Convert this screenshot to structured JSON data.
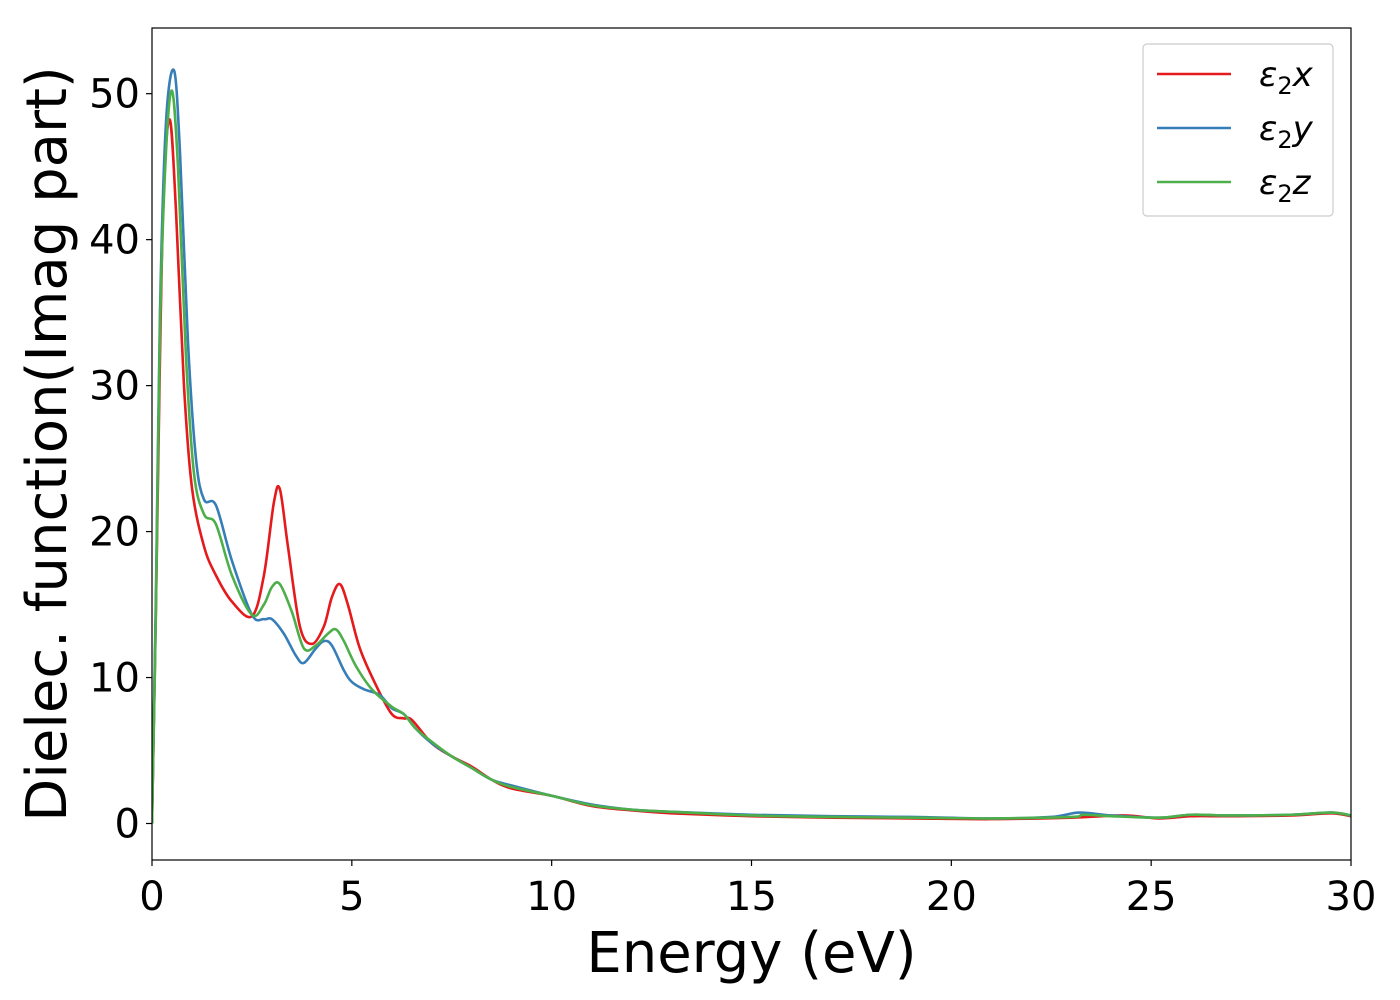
{
  "chart_data": {
    "type": "line",
    "title": "",
    "xlabel": "Energy (eV)",
    "ylabel": "Dielec. function(Imag part)",
    "xlim": [
      0,
      30
    ],
    "ylim": [
      -2.5,
      54.5
    ],
    "xticks": [
      0,
      5,
      10,
      15,
      20,
      25,
      30
    ],
    "yticks": [
      0,
      10,
      20,
      30,
      40,
      50
    ],
    "xtick_labels": [
      "0",
      "5",
      "10",
      "15",
      "20",
      "25",
      "30"
    ],
    "ytick_labels": [
      "0",
      "10",
      "20",
      "30",
      "40",
      "50"
    ],
    "grid": false,
    "legend": "top-right",
    "series": [
      {
        "name": "ε2x",
        "name_base": "ε",
        "name_sub": "2",
        "name_suffix": "x",
        "color": "#e41a1c",
        "points": [
          [
            0,
            0
          ],
          [
            0.1,
            15
          ],
          [
            0.2,
            32
          ],
          [
            0.3,
            44
          ],
          [
            0.45,
            48.2
          ],
          [
            0.6,
            42
          ],
          [
            0.8,
            30
          ],
          [
            1.0,
            23
          ],
          [
            1.3,
            19
          ],
          [
            1.6,
            17
          ],
          [
            2.0,
            15.2
          ],
          [
            2.5,
            14.2
          ],
          [
            2.8,
            17
          ],
          [
            3.05,
            22
          ],
          [
            3.2,
            22.9
          ],
          [
            3.4,
            19
          ],
          [
            3.7,
            13.5
          ],
          [
            4.0,
            12.3
          ],
          [
            4.3,
            13.5
          ],
          [
            4.5,
            15.5
          ],
          [
            4.7,
            16.4
          ],
          [
            4.9,
            15
          ],
          [
            5.2,
            12
          ],
          [
            5.6,
            9.5
          ],
          [
            6.0,
            7.5
          ],
          [
            6.3,
            7.2
          ],
          [
            6.5,
            7.1
          ],
          [
            7.0,
            5.5
          ],
          [
            7.5,
            4.6
          ],
          [
            8.0,
            3.9
          ],
          [
            8.5,
            3.0
          ],
          [
            9.0,
            2.4
          ],
          [
            10.0,
            1.9
          ],
          [
            11.0,
            1.2
          ],
          [
            12.0,
            0.9
          ],
          [
            13.0,
            0.7
          ],
          [
            15.0,
            0.5
          ],
          [
            17.0,
            0.4
          ],
          [
            19.0,
            0.35
          ],
          [
            21.0,
            0.3
          ],
          [
            23.0,
            0.4
          ],
          [
            24.3,
            0.55
          ],
          [
            25.2,
            0.35
          ],
          [
            26.0,
            0.5
          ],
          [
            27.0,
            0.5
          ],
          [
            28.5,
            0.55
          ],
          [
            29.5,
            0.7
          ],
          [
            30.0,
            0.5
          ]
        ]
      },
      {
        "name": "ε2y",
        "name_base": "ε",
        "name_sub": "2",
        "name_suffix": "y",
        "color": "#377eb8",
        "points": [
          [
            0,
            0
          ],
          [
            0.1,
            16
          ],
          [
            0.2,
            35
          ],
          [
            0.35,
            48
          ],
          [
            0.55,
            51.6
          ],
          [
            0.7,
            46
          ],
          [
            0.9,
            33
          ],
          [
            1.1,
            25
          ],
          [
            1.3,
            22.2
          ],
          [
            1.6,
            21.8
          ],
          [
            2.0,
            18
          ],
          [
            2.5,
            14.3
          ],
          [
            2.8,
            14
          ],
          [
            3.0,
            14
          ],
          [
            3.3,
            13
          ],
          [
            3.6,
            11.5
          ],
          [
            3.8,
            11.0
          ],
          [
            4.1,
            12.0
          ],
          [
            4.3,
            12.5
          ],
          [
            4.5,
            12.2
          ],
          [
            4.8,
            10.5
          ],
          [
            5.0,
            9.7
          ],
          [
            5.3,
            9.2
          ],
          [
            5.7,
            8.8
          ],
          [
            6.0,
            7.9
          ],
          [
            6.3,
            7.5
          ],
          [
            6.6,
            6.5
          ],
          [
            7.0,
            5.5
          ],
          [
            7.5,
            4.6
          ],
          [
            8.0,
            3.8
          ],
          [
            8.5,
            3.0
          ],
          [
            9.0,
            2.6
          ],
          [
            10.0,
            1.9
          ],
          [
            11.0,
            1.3
          ],
          [
            12.0,
            0.95
          ],
          [
            13.0,
            0.8
          ],
          [
            15.0,
            0.6
          ],
          [
            17.0,
            0.5
          ],
          [
            19.0,
            0.45
          ],
          [
            21.0,
            0.35
          ],
          [
            22.5,
            0.45
          ],
          [
            23.2,
            0.75
          ],
          [
            24.0,
            0.55
          ],
          [
            25.2,
            0.4
          ],
          [
            26.0,
            0.6
          ],
          [
            27.0,
            0.55
          ],
          [
            28.5,
            0.6
          ],
          [
            29.5,
            0.75
          ],
          [
            30.0,
            0.55
          ]
        ]
      },
      {
        "name": "ε2z",
        "name_base": "ε",
        "name_sub": "2",
        "name_suffix": "z",
        "color": "#4daf4a",
        "points": [
          [
            0,
            0
          ],
          [
            0.1,
            15
          ],
          [
            0.2,
            34
          ],
          [
            0.35,
            46
          ],
          [
            0.5,
            50.2
          ],
          [
            0.65,
            45
          ],
          [
            0.85,
            32
          ],
          [
            1.05,
            24
          ],
          [
            1.3,
            21.2
          ],
          [
            1.6,
            20.5
          ],
          [
            2.0,
            17
          ],
          [
            2.5,
            14.3
          ],
          [
            2.8,
            15
          ],
          [
            3.0,
            16.2
          ],
          [
            3.2,
            16.4
          ],
          [
            3.5,
            14.5
          ],
          [
            3.8,
            12
          ],
          [
            4.1,
            12.2
          ],
          [
            4.4,
            13.0
          ],
          [
            4.6,
            13.3
          ],
          [
            4.8,
            12.5
          ],
          [
            5.1,
            10.8
          ],
          [
            5.5,
            9.2
          ],
          [
            6.0,
            8.0
          ],
          [
            6.3,
            7.5
          ],
          [
            6.6,
            6.5
          ],
          [
            7.0,
            5.6
          ],
          [
            7.5,
            4.6
          ],
          [
            8.0,
            3.8
          ],
          [
            8.5,
            3.0
          ],
          [
            9.0,
            2.5
          ],
          [
            10.0,
            1.9
          ],
          [
            11.0,
            1.25
          ],
          [
            12.0,
            0.95
          ],
          [
            13.0,
            0.8
          ],
          [
            15.0,
            0.55
          ],
          [
            17.0,
            0.45
          ],
          [
            19.0,
            0.4
          ],
          [
            21.0,
            0.35
          ],
          [
            23.0,
            0.45
          ],
          [
            23.3,
            0.6
          ],
          [
            24.0,
            0.5
          ],
          [
            25.2,
            0.4
          ],
          [
            26.0,
            0.6
          ],
          [
            27.0,
            0.55
          ],
          [
            28.5,
            0.6
          ],
          [
            29.5,
            0.75
          ],
          [
            30.0,
            0.55
          ]
        ]
      }
    ]
  }
}
